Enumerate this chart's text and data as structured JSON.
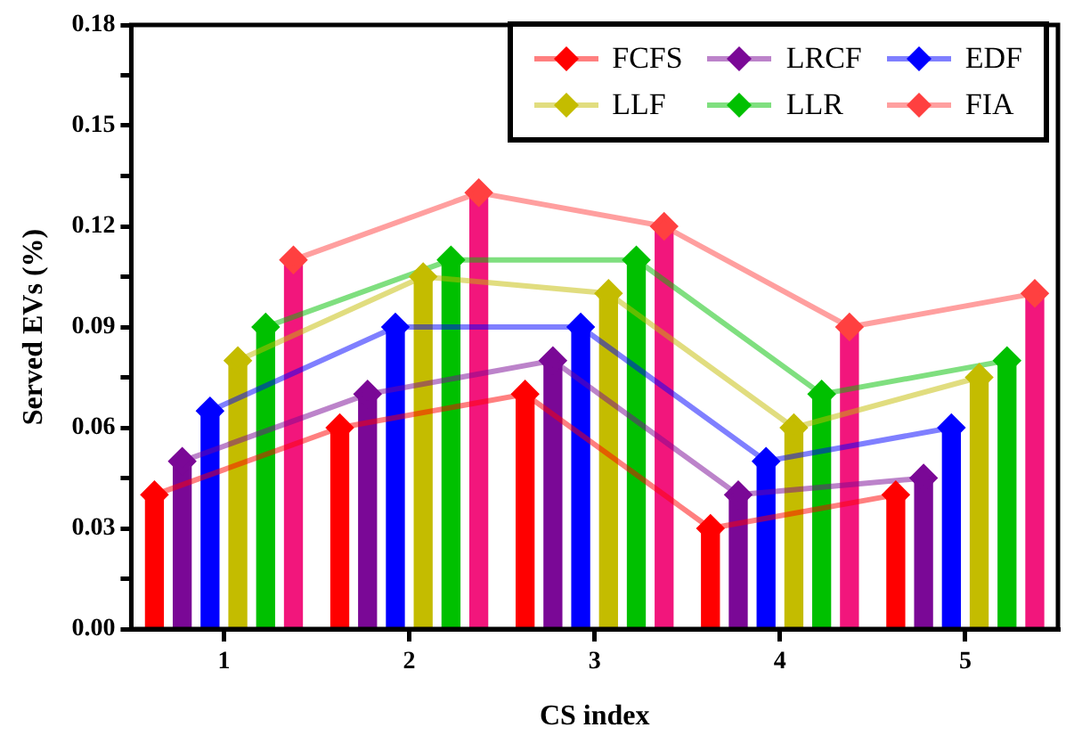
{
  "chart_data": {
    "type": "bar",
    "xlabel": "CS index",
    "ylabel": "Served EVs (%)",
    "categories": [
      "1",
      "2",
      "3",
      "4",
      "5"
    ],
    "ylim": [
      0,
      0.18
    ],
    "yticks": [
      {
        "value": 0,
        "label": "0.00"
      },
      {
        "value": 0.015,
        "label": null
      },
      {
        "value": 0.03,
        "label": "0.03"
      },
      {
        "value": 0.045,
        "label": null
      },
      {
        "value": 0.06,
        "label": "0.06"
      },
      {
        "value": 0.075,
        "label": null
      },
      {
        "value": 0.09,
        "label": "0.09"
      },
      {
        "value": 0.105,
        "label": null
      },
      {
        "value": 0.12,
        "label": "0.12"
      },
      {
        "value": 0.135,
        "label": null
      },
      {
        "value": 0.15,
        "label": "0.15"
      },
      {
        "value": 0.165,
        "label": null
      },
      {
        "value": 0.18,
        "label": "0.18"
      }
    ],
    "grid": false,
    "legend": "top right",
    "marker": "diamond",
    "line_style": "solid",
    "series": [
      {
        "color": "#ff0000",
        "values": [
          0.04,
          0.06,
          0.07,
          0.03,
          0.04
        ]
      },
      {
        "color": "#7a0896",
        "values": [
          0.05,
          0.07,
          0.08,
          0.04,
          0.045
        ]
      },
      {
        "color": "#0000ff",
        "values": [
          0.065,
          0.09,
          0.09,
          0.05,
          0.06
        ]
      },
      {
        "color": "#c4bc00",
        "values": [
          0.08,
          0.105,
          0.1,
          0.06,
          0.075
        ]
      },
      {
        "color": "#00c000",
        "values": [
          0.09,
          0.11,
          0.11,
          0.07,
          0.08
        ]
      },
      {
        "color": "#f2167c",
        "values": [
          0.11,
          0.13,
          0.12,
          0.09,
          0.1
        ]
      },
      {
        "type": "line",
        "name": "FCFS",
        "color": "#ff0000",
        "values": [
          0.04,
          0.06,
          0.07,
          0.03,
          0.04
        ]
      },
      {
        "type": "line",
        "name": "LRCF",
        "color": "#7a0896",
        "values": [
          0.05,
          0.07,
          0.08,
          0.04,
          0.045
        ]
      },
      {
        "type": "line",
        "name": "EDF",
        "color": "#0000ff",
        "values": [
          0.065,
          0.09,
          0.09,
          0.05,
          0.06
        ]
      },
      {
        "type": "line",
        "name": "LLF",
        "color": "#c4bc00",
        "values": [
          0.08,
          0.105,
          0.1,
          0.06,
          0.075
        ]
      },
      {
        "type": "line",
        "name": "LLR",
        "color": "#00c000",
        "values": [
          0.09,
          0.11,
          0.11,
          0.07,
          0.08
        ]
      },
      {
        "type": "line",
        "name": "FIA",
        "color": "#ff4040",
        "values": [
          0.11,
          0.13,
          0.12,
          0.09,
          0.1
        ]
      }
    ]
  }
}
